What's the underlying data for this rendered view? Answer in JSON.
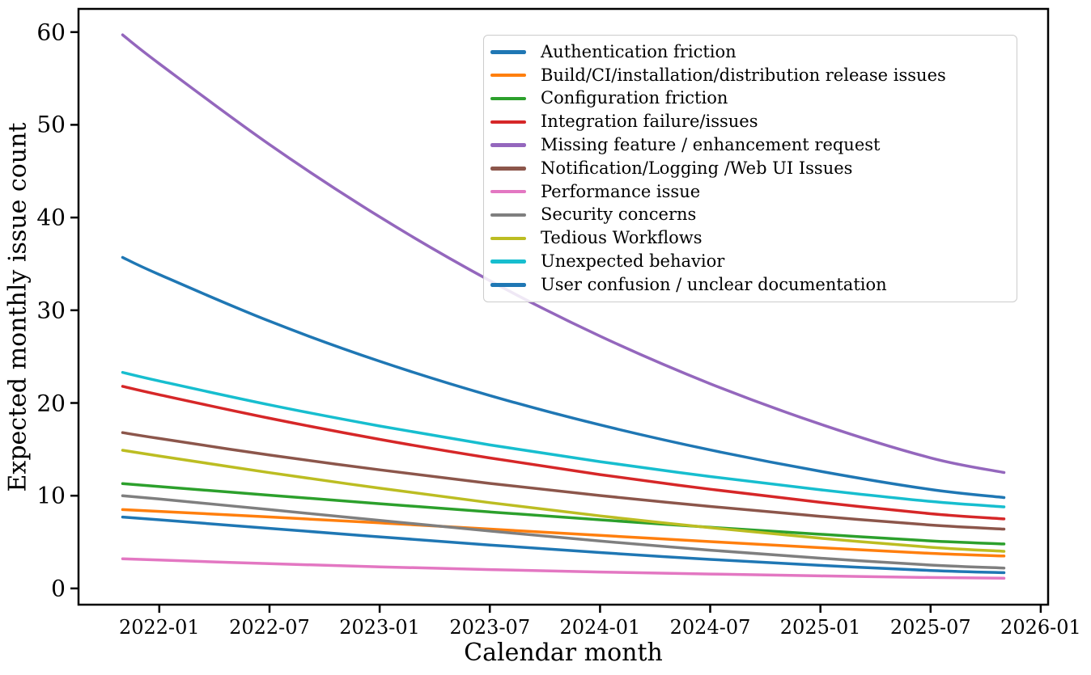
{
  "figure": {
    "background": "#ffffff",
    "axis_color": "#000000",
    "legend_border_color": "#cccccc",
    "legend_background": "rgba(255,255,255,0.85)"
  },
  "chart_data": {
    "type": "line",
    "title": "",
    "xlabel": "Calendar month",
    "ylabel": "Expected monthly issue count",
    "grid": false,
    "legend_position": "upper right",
    "xlim_months_from_2021_11": [
      -2.4,
      50.4
    ],
    "ylim": [
      -1.75,
      62.5
    ],
    "x_tick_offsets": [
      2,
      8,
      14,
      20,
      26,
      32,
      38,
      44,
      50
    ],
    "x_tick_labels": [
      "2022-01",
      "2022-07",
      "2023-01",
      "2023-07",
      "2024-01",
      "2024-07",
      "2025-01",
      "2025-07",
      "2026-01"
    ],
    "y_ticks": [
      0,
      10,
      20,
      30,
      40,
      50,
      60
    ],
    "y_tick_labels": [
      "0",
      "10",
      "20",
      "30",
      "40",
      "50",
      "60"
    ],
    "x_sample_offsets": [
      0,
      2,
      8,
      14,
      20,
      26,
      32,
      38,
      44,
      48
    ],
    "x_sample_labels": [
      "2021-11",
      "2022-01",
      "2022-07",
      "2023-01",
      "2023-07",
      "2024-01",
      "2024-07",
      "2025-01",
      "2025-07",
      "2025-11"
    ],
    "series": [
      {
        "name": "Authentication friction",
        "color": "#1f77b4",
        "values": [
          7.7,
          7.4,
          6.48,
          5.56,
          4.68,
          3.87,
          3.13,
          2.49,
          1.94,
          1.7
        ]
      },
      {
        "name": "Build/CI/installation/distribution release issues",
        "color": "#ff7f0e",
        "values": [
          8.5,
          8.31,
          7.71,
          7.07,
          6.4,
          5.72,
          5.05,
          4.4,
          3.79,
          3.5
        ]
      },
      {
        "name": "Configuration friction",
        "color": "#2ca02c",
        "values": [
          11.3,
          10.99,
          10.05,
          9.14,
          8.25,
          7.4,
          6.59,
          5.84,
          5.13,
          4.8
        ]
      },
      {
        "name": "Integration failure/issues",
        "color": "#d62728",
        "values": [
          21.8,
          20.89,
          18.35,
          16.08,
          14.07,
          12.28,
          10.7,
          9.29,
          8.06,
          7.5
        ]
      },
      {
        "name": "Missing feature / enhancement request",
        "color": "#9467bd",
        "values": [
          59.7,
          56.59,
          47.87,
          40.07,
          33.19,
          27.21,
          22.08,
          17.72,
          14.08,
          12.5
        ]
      },
      {
        "name": "Notification/Logging /Web UI Issues",
        "color": "#8c564b",
        "values": [
          16.8,
          16.17,
          14.39,
          12.79,
          11.33,
          10.02,
          8.84,
          7.78,
          6.84,
          6.4
        ]
      },
      {
        "name": "Performance issue",
        "color": "#e377c2",
        "values": [
          3.2,
          3.06,
          2.67,
          2.33,
          2.03,
          1.77,
          1.55,
          1.35,
          1.18,
          1.1
        ]
      },
      {
        "name": "Security concerns",
        "color": "#7f7f7f",
        "values": [
          10.0,
          9.64,
          8.5,
          7.33,
          6.19,
          5.11,
          4.13,
          3.26,
          2.52,
          2.2
        ]
      },
      {
        "name": "Tedious Workflows",
        "color": "#bcbd22",
        "values": [
          14.9,
          14.28,
          12.49,
          10.81,
          9.25,
          7.82,
          6.55,
          5.42,
          4.44,
          4.0
        ]
      },
      {
        "name": "Unexpected behavior",
        "color": "#17becf",
        "values": [
          23.3,
          22.37,
          19.8,
          17.52,
          15.48,
          13.67,
          12.07,
          10.64,
          9.38,
          8.8
        ]
      },
      {
        "name": "User confusion / unclear documentation",
        "color": "#1f77b4",
        "values": [
          35.7,
          33.85,
          28.82,
          24.5,
          20.8,
          17.64,
          14.94,
          12.63,
          10.67,
          9.8
        ]
      }
    ]
  }
}
